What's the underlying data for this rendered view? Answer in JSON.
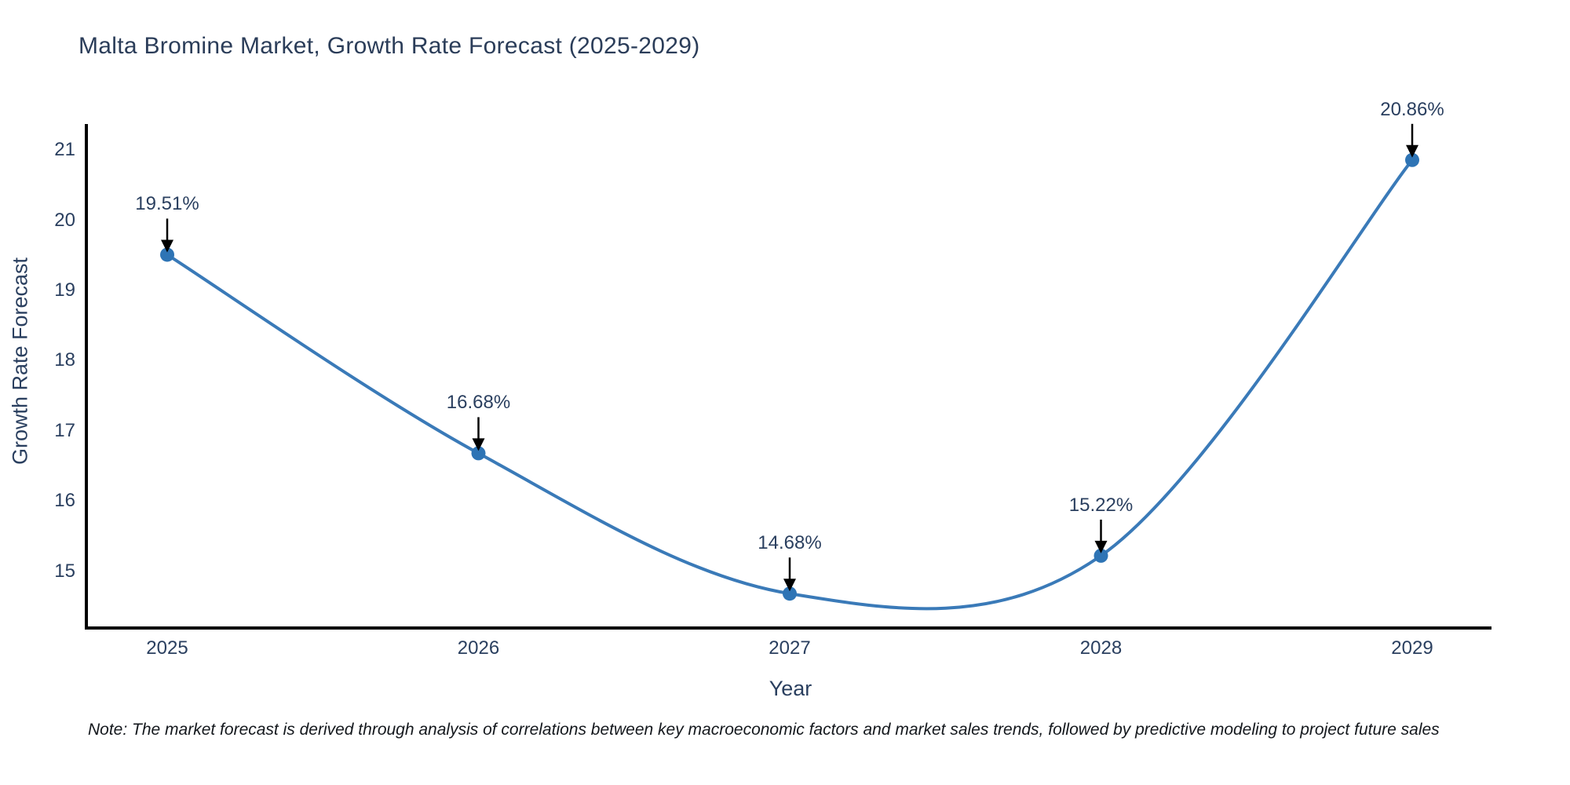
{
  "title": "Malta Bromine Market, Growth Rate Forecast (2025-2029)",
  "note": "Note: The market forecast is derived through analysis of correlations between key macroeconomic factors and market sales trends, followed by predictive modeling to project future sales",
  "chart_data": {
    "type": "line",
    "line_shape": "spline",
    "title": "Malta Bromine Market, Growth Rate Forecast (2025-2029)",
    "xlabel": "Year",
    "ylabel": "Growth Rate Forecast",
    "x": [
      2025,
      2026,
      2027,
      2028,
      2029
    ],
    "y": [
      19.51,
      16.68,
      14.68,
      15.22,
      20.86
    ],
    "point_labels": [
      "19.51%",
      "16.68%",
      "14.68%",
      "15.22%",
      "20.86%"
    ],
    "xticks": [
      "2025",
      "2026",
      "2027",
      "2028",
      "2029"
    ],
    "yticks": [
      15,
      16,
      17,
      18,
      19,
      20,
      21
    ],
    "ylim": [
      14.19,
      21.35
    ],
    "grid": false,
    "legend": "none",
    "markers": true,
    "annotations_arrows": true,
    "colors": {
      "line": "#3a7ab8",
      "marker": "#2e74b5",
      "axis": "#000000",
      "arrow": "#000000",
      "tick_text": "#2a3f5f",
      "title_text": "#2b3d59",
      "note_text": "#14181d",
      "background": "#ffffff"
    }
  }
}
